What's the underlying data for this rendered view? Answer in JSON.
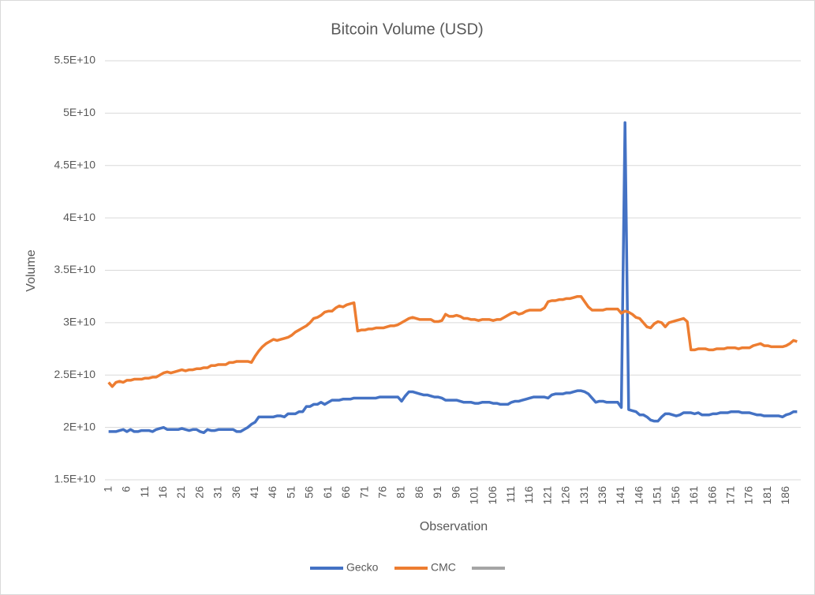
{
  "chart_data": {
    "type": "line",
    "title": "Bitcoin Volume (USD)",
    "x_label": "Observation",
    "y_label": "Volume",
    "x": [
      1,
      2,
      3,
      4,
      5,
      6,
      7,
      8,
      9,
      10,
      11,
      12,
      13,
      14,
      15,
      16,
      17,
      18,
      19,
      20,
      21,
      22,
      23,
      24,
      25,
      26,
      27,
      28,
      29,
      30,
      31,
      32,
      33,
      34,
      35,
      36,
      37,
      38,
      39,
      40,
      41,
      42,
      43,
      44,
      45,
      46,
      47,
      48,
      49,
      50,
      51,
      52,
      53,
      54,
      55,
      56,
      57,
      58,
      59,
      60,
      61,
      62,
      63,
      64,
      65,
      66,
      67,
      68,
      69,
      70,
      71,
      72,
      73,
      74,
      75,
      76,
      77,
      78,
      79,
      80,
      81,
      82,
      83,
      84,
      85,
      86,
      87,
      88,
      89,
      90,
      91,
      92,
      93,
      94,
      95,
      96,
      97,
      98,
      99,
      100,
      101,
      102,
      103,
      104,
      105,
      106,
      107,
      108,
      109,
      110,
      111,
      112,
      113,
      114,
      115,
      116,
      117,
      118,
      119,
      120,
      121,
      122,
      123,
      124,
      125,
      126,
      127,
      128,
      129,
      130,
      131,
      132,
      133,
      134,
      135,
      136,
      137,
      138,
      139,
      140,
      141,
      142,
      143,
      144,
      145,
      146,
      147,
      148,
      149,
      150,
      151,
      152,
      153,
      154,
      155,
      156,
      157,
      158,
      159,
      160,
      161,
      162,
      163,
      164,
      165,
      166,
      167,
      168,
      169,
      170,
      171,
      172,
      173,
      174,
      175,
      176,
      177,
      178,
      179,
      180,
      181,
      182,
      183,
      184,
      185,
      186,
      187,
      188,
      189
    ],
    "xlim": [
      0,
      190
    ],
    "xticks": [
      1,
      6,
      11,
      16,
      21,
      26,
      31,
      36,
      41,
      46,
      51,
      56,
      61,
      66,
      71,
      76,
      81,
      86,
      91,
      96,
      101,
      106,
      111,
      116,
      121,
      126,
      131,
      136,
      141,
      146,
      151,
      156,
      161,
      166,
      171,
      176,
      181,
      186
    ],
    "ylim": [
      15000000000,
      55000000000
    ],
    "yticks": [
      {
        "value": 15000000000,
        "label": "1.5E+10"
      },
      {
        "value": 20000000000,
        "label": "2E+10"
      },
      {
        "value": 25000000000,
        "label": "2.5E+10"
      },
      {
        "value": 30000000000,
        "label": "3E+10"
      },
      {
        "value": 35000000000,
        "label": "3.5E+10"
      },
      {
        "value": 40000000000,
        "label": "4E+10"
      },
      {
        "value": 45000000000,
        "label": "4.5E+10"
      },
      {
        "value": 50000000000,
        "label": "5E+10"
      },
      {
        "value": 55000000000,
        "label": "5.5E+10"
      }
    ],
    "grid": true,
    "legend": "bottom",
    "series": [
      {
        "name": "Gecko",
        "color": "#4472c4",
        "values": [
          19600000000.0,
          19600000000.0,
          19600000000.0,
          19700000000.0,
          19800000000.0,
          19600000000.0,
          19800000000.0,
          19600000000.0,
          19600000000.0,
          19700000000.0,
          19700000000.0,
          19700000000.0,
          19600000000.0,
          19800000000.0,
          19900000000.0,
          20000000000.0,
          19800000000.0,
          19800000000.0,
          19800000000.0,
          19800000000.0,
          19900000000.0,
          19800000000.0,
          19700000000.0,
          19800000000.0,
          19800000000.0,
          19600000000.0,
          19500000000.0,
          19800000000.0,
          19700000000.0,
          19700000000.0,
          19800000000.0,
          19800000000.0,
          19800000000.0,
          19800000000.0,
          19800000000.0,
          19600000000.0,
          19600000000.0,
          19800000000.0,
          20000000000.0,
          20300000000.0,
          20500000000.0,
          21000000000.0,
          21000000000.0,
          21000000000.0,
          21000000000.0,
          21000000000.0,
          21100000000.0,
          21100000000.0,
          21000000000.0,
          21300000000.0,
          21300000000.0,
          21300000000.0,
          21500000000.0,
          21500000000.0,
          22000000000.0,
          22000000000.0,
          22200000000.0,
          22200000000.0,
          22400000000.0,
          22200000000.0,
          22400000000.0,
          22600000000.0,
          22600000000.0,
          22600000000.0,
          22700000000.0,
          22700000000.0,
          22700000000.0,
          22800000000.0,
          22800000000.0,
          22800000000.0,
          22800000000.0,
          22800000000.0,
          22800000000.0,
          22800000000.0,
          22900000000.0,
          22900000000.0,
          22900000000.0,
          22900000000.0,
          22900000000.0,
          22900000000.0,
          22500000000.0,
          23000000000.0,
          23400000000.0,
          23400000000.0,
          23300000000.0,
          23200000000.0,
          23100000000.0,
          23100000000.0,
          23000000000.0,
          22900000000.0,
          22900000000.0,
          22800000000.0,
          22600000000.0,
          22600000000.0,
          22600000000.0,
          22600000000.0,
          22500000000.0,
          22400000000.0,
          22400000000.0,
          22400000000.0,
          22300000000.0,
          22300000000.0,
          22400000000.0,
          22400000000.0,
          22400000000.0,
          22300000000.0,
          22300000000.0,
          22200000000.0,
          22200000000.0,
          22200000000.0,
          22400000000.0,
          22500000000.0,
          22500000000.0,
          22600000000.0,
          22700000000.0,
          22800000000.0,
          22900000000.0,
          22900000000.0,
          22900000000.0,
          22900000000.0,
          22800000000.0,
          23100000000.0,
          23200000000.0,
          23200000000.0,
          23200000000.0,
          23300000000.0,
          23300000000.0,
          23400000000.0,
          23500000000.0,
          23500000000.0,
          23400000000.0,
          23200000000.0,
          22800000000.0,
          22400000000.0,
          22500000000.0,
          22500000000.0,
          22400000000.0,
          22400000000.0,
          22400000000.0,
          22400000000.0,
          21900000000.0,
          49100000000.0,
          21700000000.0,
          21600000000.0,
          21500000000.0,
          21200000000.0,
          21200000000.0,
          21000000000.0,
          20700000000.0,
          20600000000.0,
          20600000000.0,
          21000000000.0,
          21300000000.0,
          21300000000.0,
          21200000000.0,
          21100000000.0,
          21200000000.0,
          21400000000.0,
          21400000000.0,
          21400000000.0,
          21300000000.0,
          21400000000.0,
          21200000000.0,
          21200000000.0,
          21200000000.0,
          21300000000.0,
          21300000000.0,
          21400000000.0,
          21400000000.0,
          21400000000.0,
          21500000000.0,
          21500000000.0,
          21500000000.0,
          21400000000.0,
          21400000000.0,
          21400000000.0,
          21300000000.0,
          21200000000.0,
          21200000000.0,
          21100000000.0,
          21100000000.0,
          21100000000.0,
          21100000000.0,
          21100000000.0,
          21000000000.0,
          21200000000.0,
          21300000000.0,
          21500000000.0,
          21500000000.0
        ]
      },
      {
        "name": "CMC",
        "color": "#ed7d31",
        "values": [
          24300000000.0,
          23900000000.0,
          24300000000.0,
          24400000000.0,
          24300000000.0,
          24500000000.0,
          24500000000.0,
          24600000000.0,
          24600000000.0,
          24600000000.0,
          24700000000.0,
          24700000000.0,
          24800000000.0,
          24800000000.0,
          25000000000.0,
          25200000000.0,
          25300000000.0,
          25200000000.0,
          25300000000.0,
          25400000000.0,
          25500000000.0,
          25400000000.0,
          25500000000.0,
          25500000000.0,
          25600000000.0,
          25600000000.0,
          25700000000.0,
          25700000000.0,
          25900000000.0,
          25900000000.0,
          26000000000.0,
          26000000000.0,
          26000000000.0,
          26200000000.0,
          26200000000.0,
          26300000000.0,
          26300000000.0,
          26300000000.0,
          26300000000.0,
          26200000000.0,
          26800000000.0,
          27300000000.0,
          27700000000.0,
          28000000000.0,
          28200000000.0,
          28400000000.0,
          28300000000.0,
          28400000000.0,
          28500000000.0,
          28600000000.0,
          28800000000.0,
          29100000000.0,
          29300000000.0,
          29500000000.0,
          29700000000.0,
          30000000000.0,
          30400000000.0,
          30500000000.0,
          30700000000.0,
          31000000000.0,
          31100000000.0,
          31100000000.0,
          31400000000.0,
          31600000000.0,
          31500000000.0,
          31700000000.0,
          31800000000.0,
          31900000000.0,
          29200000000.0,
          29300000000.0,
          29300000000.0,
          29400000000.0,
          29400000000.0,
          29500000000.0,
          29500000000.0,
          29500000000.0,
          29600000000.0,
          29700000000.0,
          29700000000.0,
          29800000000.0,
          30000000000.0,
          30200000000.0,
          30400000000.0,
          30500000000.0,
          30400000000.0,
          30300000000.0,
          30300000000.0,
          30300000000.0,
          30300000000.0,
          30100000000.0,
          30100000000.0,
          30200000000.0,
          30800000000.0,
          30600000000.0,
          30600000000.0,
          30700000000.0,
          30600000000.0,
          30400000000.0,
          30400000000.0,
          30300000000.0,
          30300000000.0,
          30200000000.0,
          30300000000.0,
          30300000000.0,
          30300000000.0,
          30200000000.0,
          30300000000.0,
          30300000000.0,
          30500000000.0,
          30700000000.0,
          30900000000.0,
          31000000000.0,
          30800000000.0,
          30900000000.0,
          31100000000.0,
          31200000000.0,
          31200000000.0,
          31200000000.0,
          31200000000.0,
          31400000000.0,
          32000000000.0,
          32100000000.0,
          32100000000.0,
          32200000000.0,
          32200000000.0,
          32300000000.0,
          32300000000.0,
          32400000000.0,
          32500000000.0,
          32500000000.0,
          32000000000.0,
          31500000000.0,
          31200000000.0,
          31200000000.0,
          31200000000.0,
          31200000000.0,
          31300000000.0,
          31300000000.0,
          31300000000.0,
          31300000000.0,
          30900000000.0,
          31100000000.0,
          31000000000.0,
          30800000000.0,
          30500000000.0,
          30400000000.0,
          30000000000.0,
          29600000000.0,
          29500000000.0,
          29900000000.0,
          30100000000.0,
          30000000000.0,
          29600000000.0,
          30000000000.0,
          30100000000.0,
          30200000000.0,
          30300000000.0,
          30400000000.0,
          30100000000.0,
          27400000000.0,
          27400000000.0,
          27500000000.0,
          27500000000.0,
          27500000000.0,
          27400000000.0,
          27400000000.0,
          27500000000.0,
          27500000000.0,
          27500000000.0,
          27600000000.0,
          27600000000.0,
          27600000000.0,
          27500000000.0,
          27600000000.0,
          27600000000.0,
          27600000000.0,
          27800000000.0,
          27900000000.0,
          28000000000.0,
          27800000000.0,
          27800000000.0,
          27700000000.0,
          27700000000.0,
          27700000000.0,
          27700000000.0,
          27800000000.0,
          28000000000.0,
          28300000000.0,
          28200000000.0
        ]
      }
    ]
  }
}
